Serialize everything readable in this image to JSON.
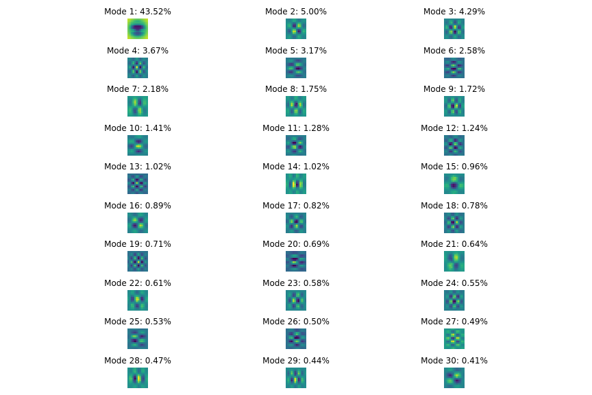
{
  "chart_data": {
    "type": "heatmap",
    "colormap": "viridis",
    "panels": [
      {
        "title": "Mode 1: 43.52%",
        "mode": 1,
        "variance_pct": 43.52
      },
      {
        "title": "Mode 2: 5.00%",
        "mode": 2,
        "variance_pct": 5.0
      },
      {
        "title": "Mode 3: 4.29%",
        "mode": 3,
        "variance_pct": 4.29
      },
      {
        "title": "Mode 4: 3.67%",
        "mode": 4,
        "variance_pct": 3.67
      },
      {
        "title": "Mode 5: 3.17%",
        "mode": 5,
        "variance_pct": 3.17
      },
      {
        "title": "Mode 6: 2.58%",
        "mode": 6,
        "variance_pct": 2.58
      },
      {
        "title": "Mode 7: 2.18%",
        "mode": 7,
        "variance_pct": 2.18
      },
      {
        "title": "Mode 8: 1.75%",
        "mode": 8,
        "variance_pct": 1.75
      },
      {
        "title": "Mode 9: 1.72%",
        "mode": 9,
        "variance_pct": 1.72
      },
      {
        "title": "Mode 10: 1.41%",
        "mode": 10,
        "variance_pct": 1.41
      },
      {
        "title": "Mode 11: 1.28%",
        "mode": 11,
        "variance_pct": 1.28
      },
      {
        "title": "Mode 12: 1.24%",
        "mode": 12,
        "variance_pct": 1.24
      },
      {
        "title": "Mode 13: 1.02%",
        "mode": 13,
        "variance_pct": 1.02
      },
      {
        "title": "Mode 14: 1.02%",
        "mode": 14,
        "variance_pct": 1.02
      },
      {
        "title": "Mode 15: 0.96%",
        "mode": 15,
        "variance_pct": 0.96
      },
      {
        "title": "Mode 16: 0.89%",
        "mode": 16,
        "variance_pct": 0.89
      },
      {
        "title": "Mode 17: 0.82%",
        "mode": 17,
        "variance_pct": 0.82
      },
      {
        "title": "Mode 18: 0.78%",
        "mode": 18,
        "variance_pct": 0.78
      },
      {
        "title": "Mode 19: 0.71%",
        "mode": 19,
        "variance_pct": 0.71
      },
      {
        "title": "Mode 20: 0.69%",
        "mode": 20,
        "variance_pct": 0.69
      },
      {
        "title": "Mode 21: 0.64%",
        "mode": 21,
        "variance_pct": 0.64
      },
      {
        "title": "Mode 22: 0.61%",
        "mode": 22,
        "variance_pct": 0.61
      },
      {
        "title": "Mode 23: 0.58%",
        "mode": 23,
        "variance_pct": 0.58
      },
      {
        "title": "Mode 24: 0.55%",
        "mode": 24,
        "variance_pct": 0.55
      },
      {
        "title": "Mode 25: 0.53%",
        "mode": 25,
        "variance_pct": 0.53
      },
      {
        "title": "Mode 26: 0.50%",
        "mode": 26,
        "variance_pct": 0.5
      },
      {
        "title": "Mode 27: 0.49%",
        "mode": 27,
        "variance_pct": 0.49
      },
      {
        "title": "Mode 28: 0.47%",
        "mode": 28,
        "variance_pct": 0.47
      },
      {
        "title": "Mode 29: 0.44%",
        "mode": 29,
        "variance_pct": 0.44
      },
      {
        "title": "Mode 30: 0.41%",
        "mode": 30,
        "variance_pct": 0.41
      }
    ]
  }
}
